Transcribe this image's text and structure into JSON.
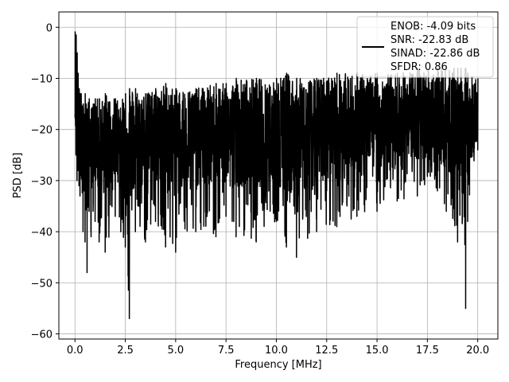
{
  "chart_data": {
    "type": "line",
    "xlabel": "Frequency [MHz]",
    "ylabel": "PSD [dB]",
    "xlim": [
      -0.8,
      21.0
    ],
    "ylim": [
      -61,
      3
    ],
    "x_ticks": [
      0.0,
      2.5,
      5.0,
      7.5,
      10.0,
      12.5,
      15.0,
      17.5,
      20.0
    ],
    "x_tick_labels": [
      "0.0",
      "2.5",
      "5.0",
      "7.5",
      "10.0",
      "12.5",
      "15.0",
      "17.5",
      "20.0"
    ],
    "y_ticks": [
      0,
      -10,
      -20,
      -30,
      -40,
      -50,
      -60
    ],
    "y_tick_labels": [
      "0",
      "−10",
      "−20",
      "−30",
      "−40",
      "−50",
      "−60"
    ],
    "grid": true,
    "legend_position": "top-right",
    "legend_lines": [
      "ENOB: -4.09 bits",
      "SNR: -22.83 dB",
      "SINAD: -22.86 dB",
      "SFDR: 0.86"
    ],
    "line_color": "#000000",
    "series": [
      {
        "x": [
          0.0,
          0.05,
          0.1,
          0.15,
          0.2,
          0.25,
          0.3,
          0.4,
          0.5,
          0.55,
          0.6,
          0.7,
          0.8,
          0.9,
          1.0,
          1.2,
          1.5,
          2.0,
          2.5,
          2.7,
          3.0,
          3.5,
          4.0,
          4.5,
          5.0,
          6.0,
          7.0,
          7.5,
          8.0,
          9.0,
          10.0,
          10.5,
          11.0,
          12.0,
          13.0,
          14.0,
          15.0,
          16.0,
          17.0,
          18.0,
          19.0,
          19.4,
          19.5,
          20.0
        ],
        "upper": [
          -0.9,
          -1.5,
          -5,
          -9,
          -12,
          -13,
          -13,
          -15,
          -13,
          -15,
          -16,
          -14,
          -16,
          -15,
          -14,
          -14,
          -13,
          -14,
          -13,
          -12,
          -12,
          -13,
          -12,
          -11,
          -12,
          -12,
          -11,
          -11,
          -10,
          -10,
          -10,
          -9,
          -10,
          -10,
          -9,
          -9,
          -9,
          -9,
          -8,
          -8,
          -8,
          -8,
          -9,
          -10
        ],
        "lower": [
          -17,
          -25,
          -30,
          -28,
          -31,
          -33,
          -29,
          -40,
          -42,
          -35,
          -48,
          -36,
          -41,
          -36,
          -38,
          -42,
          -44,
          -37,
          -43,
          -57,
          -40,
          -42,
          -38,
          -43,
          -44,
          -40,
          -41,
          -37,
          -41,
          -42,
          -38,
          -43,
          -45,
          -40,
          -39,
          -37,
          -36,
          -34,
          -33,
          -32,
          -42,
          -55,
          -38,
          -24
        ],
        "center": [
          -17,
          -17,
          -20,
          -20,
          -20,
          -20,
          -21,
          -21,
          -21,
          -21,
          -21,
          -21,
          -21,
          -21,
          -21,
          -21,
          -21,
          -20,
          -21,
          -21,
          -20,
          -20,
          -20,
          -20,
          -20,
          -20,
          -20,
          -20,
          -19,
          -19,
          -19,
          -19,
          -19,
          -19,
          -19,
          -19,
          -18,
          -18,
          -18,
          -18,
          -18,
          -18,
          -18,
          -18
        ]
      }
    ]
  }
}
